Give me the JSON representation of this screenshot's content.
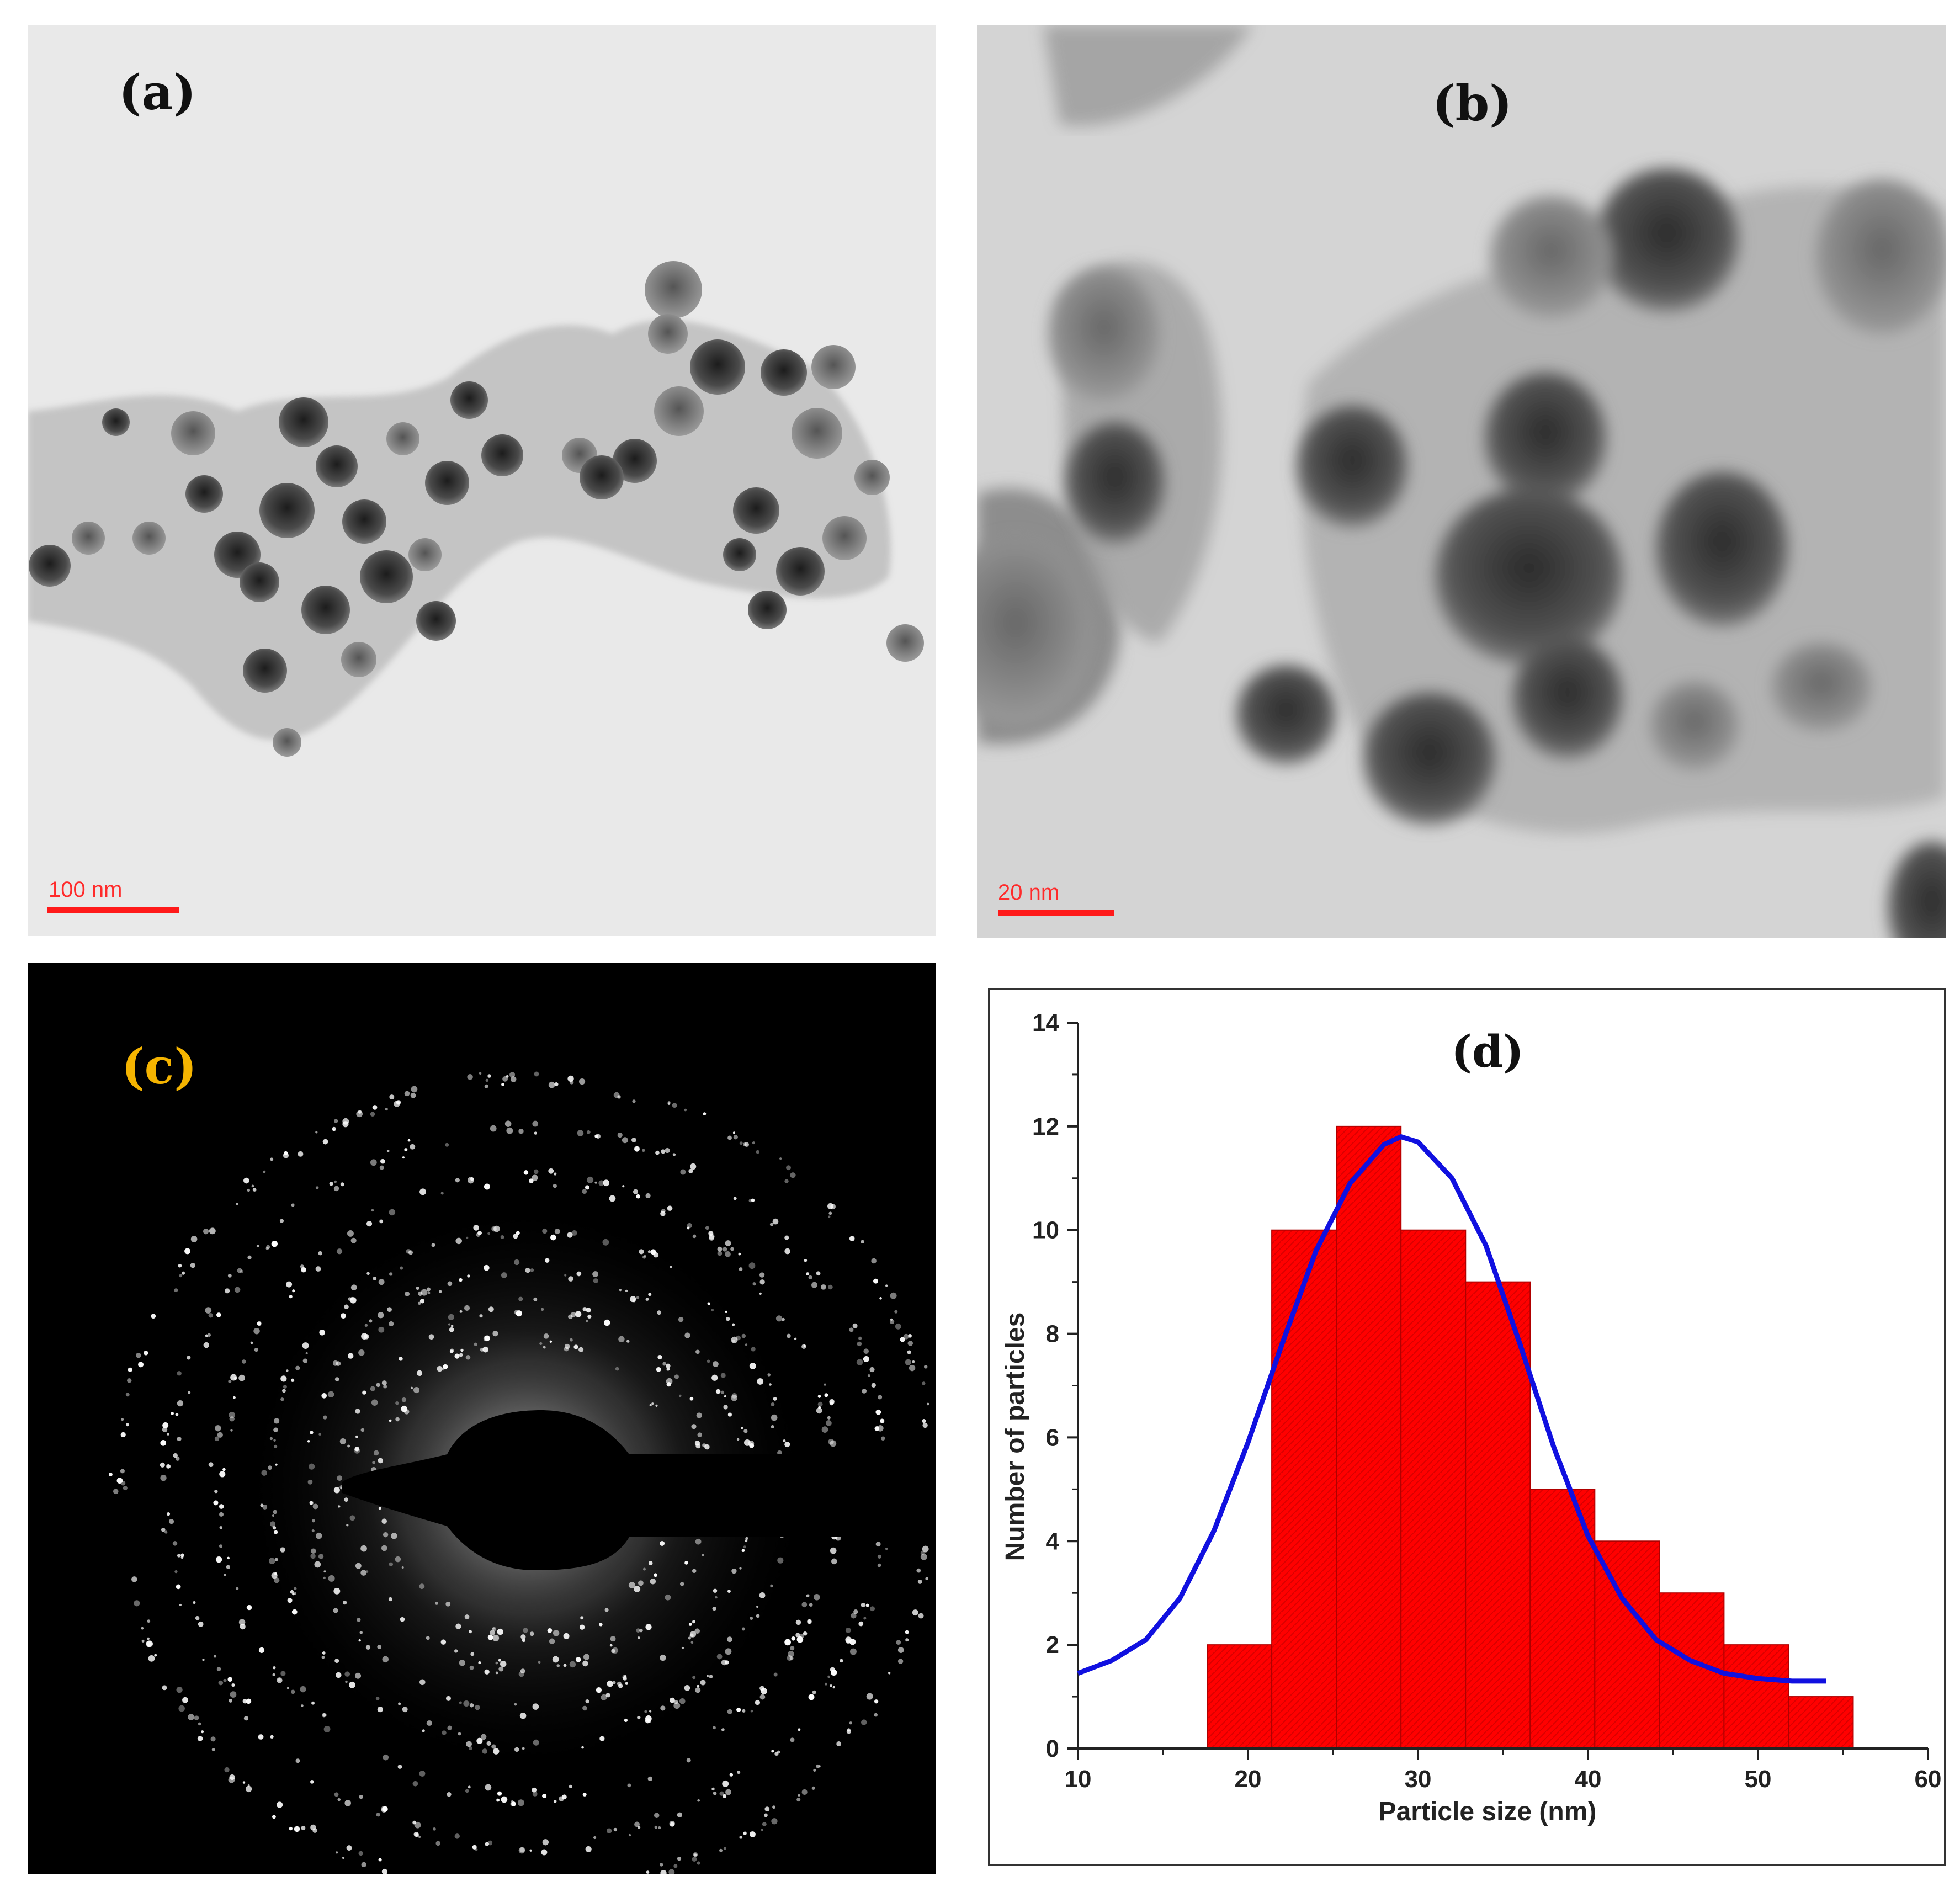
{
  "panels": {
    "a": {
      "label": "(a)",
      "scale_text": "100 nm"
    },
    "b": {
      "label": "(b)",
      "scale_text": "20 nm"
    },
    "c": {
      "label": "(c)",
      "label_color": "#f5b400"
    },
    "d": {
      "label": "(d)"
    }
  },
  "colors": {
    "bar_fill": "#ff0000",
    "bar_edge": "#b00000",
    "fit_line": "#1010e0",
    "scale_bar": "#ff1a1a"
  },
  "chart_data": {
    "type": "bar",
    "title": "(d)",
    "xlabel": "Particle size (nm)",
    "ylabel": "Number of particles",
    "xlim": [
      10,
      60
    ],
    "ylim": [
      0,
      14
    ],
    "xticks": [
      10,
      20,
      30,
      40,
      50,
      60
    ],
    "yticks": [
      0,
      2,
      4,
      6,
      8,
      10,
      12,
      14
    ],
    "bin_width": 3.8,
    "bins": [
      {
        "center": 19.5,
        "count": 2
      },
      {
        "center": 23.3,
        "count": 10
      },
      {
        "center": 27.1,
        "count": 12
      },
      {
        "center": 30.9,
        "count": 10
      },
      {
        "center": 34.7,
        "count": 9
      },
      {
        "center": 38.5,
        "count": 5
      },
      {
        "center": 42.3,
        "count": 4
      },
      {
        "center": 46.1,
        "count": 3
      },
      {
        "center": 49.9,
        "count": 2
      },
      {
        "center": 53.7,
        "count": 1
      }
    ],
    "fit_curve": {
      "x": [
        10,
        12,
        14,
        16,
        18,
        20,
        22,
        24,
        26,
        28,
        29,
        30,
        32,
        34,
        36,
        38,
        40,
        42,
        44,
        46,
        48,
        50,
        52,
        54
      ],
      "y": [
        1.45,
        1.7,
        2.1,
        2.9,
        4.2,
        5.9,
        7.8,
        9.6,
        10.9,
        11.65,
        11.8,
        11.7,
        11.0,
        9.7,
        7.8,
        5.8,
        4.1,
        2.9,
        2.1,
        1.7,
        1.45,
        1.35,
        1.3,
        1.3
      ]
    },
    "grid": false,
    "legend": "none"
  }
}
